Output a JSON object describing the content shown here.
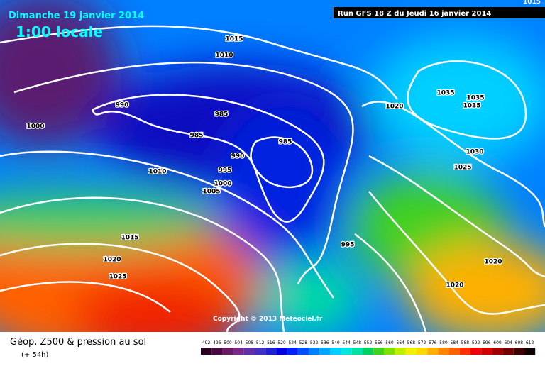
{
  "header": {
    "date": "Dimanche 19 janvier 2014",
    "local_time": "1:00 locale",
    "run": "Run GFS 18 Z du Jeudi 16 janvier 2014",
    "corner": "1015"
  },
  "isobar_labels": [
    "1015",
    "1010",
    "990",
    "985",
    "985",
    "1000",
    "985",
    "990",
    "995",
    "1000",
    "1010",
    "1005",
    "1015",
    "1020",
    "1025",
    "995",
    "1020",
    "1035",
    "1035",
    "1035",
    "1030",
    "1025",
    "1020",
    "1020"
  ],
  "copyright": "Copyright © 2013 Meteociel.fr",
  "footer": {
    "title": "Géop. Z500 & pression au sol",
    "lead": "(+ 54h)"
  },
  "scale": {
    "labels": [
      492,
      496,
      500,
      504,
      508,
      512,
      516,
      520,
      524,
      528,
      532,
      536,
      540,
      544,
      548,
      552,
      556,
      560,
      564,
      568,
      572,
      576,
      580,
      584,
      588,
      592,
      596,
      600,
      604,
      608,
      612
    ],
    "colors": [
      "#2a0022",
      "#4a0a40",
      "#6a1a60",
      "#7a2a88",
      "#6030a8",
      "#4030c0",
      "#2020d0",
      "#0000e0",
      "#0020ff",
      "#0050ff",
      "#0080ff",
      "#00a8ff",
      "#00d0ff",
      "#00e8e0",
      "#00e0a0",
      "#00d060",
      "#40d020",
      "#80e000",
      "#c0f000",
      "#f0f000",
      "#ffd800",
      "#ffb000",
      "#ff8800",
      "#ff6000",
      "#ff3000",
      "#f00000",
      "#d00000",
      "#a00000",
      "#700000",
      "#400000",
      "#100000"
    ]
  }
}
